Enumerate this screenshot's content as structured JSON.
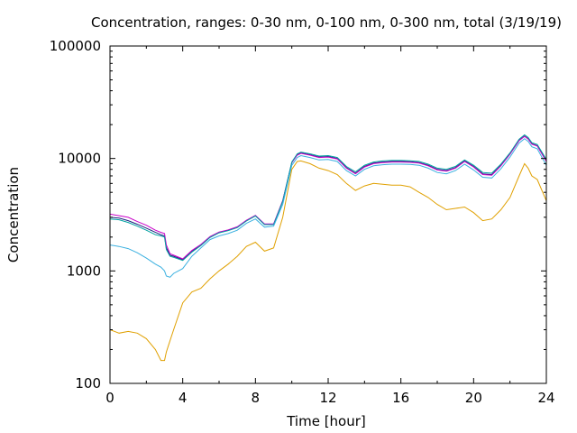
{
  "chart_data": {
    "type": "line",
    "title": "Concentration, ranges: 0-30 nm, 0-100 nm, 0-300 nm, total (3/19/19)",
    "xlabel": "Time [hour]",
    "ylabel": "Concentration",
    "xlim": [
      0,
      24
    ],
    "ylim": [
      100,
      100000
    ],
    "yscale": "log",
    "grid": false,
    "legend": "none",
    "x_ticks": [
      "0",
      "4",
      "8",
      "12",
      "16",
      "20",
      "24"
    ],
    "y_ticks": [
      "100",
      "1000",
      "10000",
      "100000"
    ],
    "x": [
      0,
      0.5,
      1,
      1.5,
      2,
      2.5,
      2.8,
      3,
      3.1,
      3.3,
      3.5,
      4,
      4.5,
      5,
      5.5,
      6,
      6.5,
      7,
      7.5,
      8,
      8.5,
      9,
      9.5,
      10,
      10.3,
      10.5,
      11,
      11.5,
      12,
      12.5,
      13,
      13.5,
      14,
      14.5,
      15,
      15.5,
      16,
      16.5,
      17,
      17.5,
      18,
      18.5,
      19,
      19.5,
      20,
      20.5,
      21,
      21.5,
      22,
      22.5,
      22.8,
      23,
      23.2,
      23.5,
      24
    ],
    "series": [
      {
        "color": "#1a237e",
        "values": [
          3000,
          2950,
          2800,
          2600,
          2400,
          2200,
          2100,
          2050,
          1600,
          1380,
          1350,
          1260,
          1500,
          1700,
          2000,
          2200,
          2300,
          2450,
          2800,
          3100,
          2600,
          2600,
          4200,
          9200,
          10800,
          11200,
          10800,
          10300,
          10400,
          10000,
          8300,
          7400,
          8500,
          9100,
          9300,
          9400,
          9400,
          9350,
          9200,
          8700,
          8000,
          7800,
          8300,
          9500,
          8500,
          7300,
          7200,
          8700,
          11000,
          14500,
          15800,
          15000,
          13500,
          13000,
          9500
        ]
      },
      {
        "color": "#c800c8",
        "values": [
          3200,
          3100,
          3000,
          2750,
          2550,
          2300,
          2200,
          2150,
          1700,
          1420,
          1380,
          1280,
          1520,
          1720,
          2020,
          2220,
          2320,
          2470,
          2820,
          3120,
          2620,
          2620,
          4220,
          9200,
          10700,
          11100,
          10700,
          10200,
          10300,
          9900,
          8200,
          7300,
          8400,
          9000,
          9200,
          9300,
          9300,
          9250,
          9100,
          8600,
          7900,
          7700,
          8200,
          9400,
          8400,
          7200,
          7100,
          8600,
          10900,
          14400,
          15700,
          14900,
          13400,
          12900,
          9400
        ]
      },
      {
        "color": "#00a0a0",
        "values": [
          2900,
          2850,
          2700,
          2500,
          2300,
          2100,
          2050,
          2000,
          1550,
          1350,
          1320,
          1240,
          1470,
          1680,
          1980,
          2180,
          2280,
          2430,
          2780,
          3080,
          2580,
          2580,
          4150,
          9300,
          11000,
          11400,
          11000,
          10500,
          10600,
          10200,
          8500,
          7600,
          8700,
          9300,
          9500,
          9600,
          9600,
          9550,
          9400,
          8900,
          8200,
          8000,
          8500,
          9700,
          8700,
          7500,
          7400,
          8900,
          11200,
          14800,
          16200,
          15400,
          13800,
          13300,
          9800
        ]
      },
      {
        "color": "#3ab0e0",
        "values": [
          1700,
          1650,
          1580,
          1450,
          1300,
          1150,
          1080,
          1000,
          900,
          880,
          950,
          1050,
          1350,
          1600,
          1900,
          2050,
          2150,
          2300,
          2650,
          2900,
          2450,
          2500,
          3900,
          8700,
          10200,
          10600,
          10200,
          9700,
          9800,
          9400,
          7800,
          7000,
          8000,
          8600,
          8800,
          8900,
          8900,
          8850,
          8700,
          8200,
          7500,
          7300,
          7800,
          8900,
          7900,
          6800,
          6700,
          8100,
          10300,
          13700,
          15000,
          14200,
          12700,
          12200,
          8700
        ]
      },
      {
        "color": "#e0a000",
        "values": [
          300,
          280,
          290,
          280,
          250,
          200,
          160,
          160,
          190,
          240,
          300,
          520,
          650,
          700,
          850,
          1000,
          1150,
          1350,
          1650,
          1800,
          1500,
          1600,
          3000,
          8000,
          9400,
          9500,
          9000,
          8200,
          7800,
          7200,
          6000,
          5200,
          5700,
          6000,
          5900,
          5800,
          5800,
          5600,
          5000,
          4500,
          3900,
          3500,
          3600,
          3700,
          3300,
          2800,
          2900,
          3500,
          4500,
          7000,
          9000,
          8200,
          7000,
          6500,
          4200
        ]
      }
    ]
  }
}
